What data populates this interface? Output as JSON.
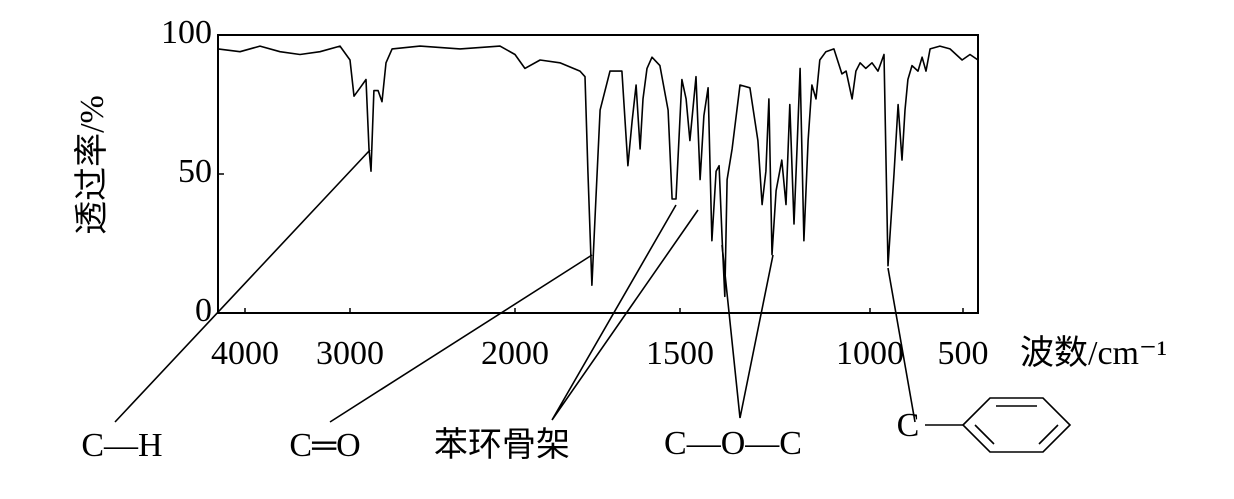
{
  "chart_data": {
    "type": "line",
    "ylabel": "透过率/%",
    "xlabel": "波数/cm⁻¹",
    "xlim": [
      4257,
      419
    ],
    "xticks": [
      4000,
      3000,
      2000,
      1500,
      1000,
      500
    ],
    "ylim": [
      0,
      100
    ],
    "yticks": [
      0,
      50,
      100
    ],
    "color": "#000000",
    "x": [
      4257,
      4048,
      3857,
      3667,
      3476,
      3286,
      3095,
      3000,
      2976,
      2939,
      2903,
      2885,
      2873,
      2855,
      2830,
      2806,
      2782,
      2745,
      2576,
      2333,
      2091,
      2000,
      1970,
      1924,
      1864,
      1803,
      1788,
      1779,
      1767,
      1755,
      1742,
      1712,
      1676,
      1658,
      1645,
      1633,
      1621,
      1612,
      1600,
      1585,
      1561,
      1536,
      1524,
      1512,
      1495,
      1484,
      1474,
      1458,
      1447,
      1437,
      1426,
      1416,
      1405,
      1397,
      1389,
      1382,
      1376,
      1363,
      1342,
      1316,
      1295,
      1284,
      1274,
      1266,
      1258,
      1247,
      1232,
      1221,
      1211,
      1200,
      1192,
      1184,
      1174,
      1163,
      1153,
      1142,
      1132,
      1116,
      1095,
      1074,
      1063,
      1047,
      1037,
      1026,
      1011,
      989,
      957,
      925,
      903,
      871,
      849,
      828,
      812,
      796,
      774,
      742,
      720,
      699,
      677,
      624,
      570,
      505,
      462,
      419
    ],
    "values": [
      95,
      94,
      96,
      94,
      93,
      94,
      96,
      91,
      78,
      81,
      84,
      59,
      51,
      80,
      80,
      76,
      90,
      95,
      96,
      95,
      96,
      93,
      88,
      91,
      90,
      87,
      85,
      51,
      10,
      41,
      73,
      87,
      87,
      53,
      69,
      82,
      59,
      77,
      88,
      92,
      89,
      73,
      41,
      41,
      84,
      77,
      62,
      85,
      48,
      71,
      81,
      26,
      51,
      53,
      26,
      6,
      48,
      59,
      82,
      81,
      62,
      39,
      51,
      77,
      21,
      44,
      55,
      39,
      75,
      32,
      59,
      88,
      26,
      62,
      82,
      77,
      91,
      94,
      95,
      86,
      87,
      77,
      87,
      90,
      88,
      90,
      87,
      93,
      17,
      50,
      75,
      55,
      73,
      84,
      89,
      87,
      92,
      87,
      95,
      96,
      95,
      91,
      93,
      91
    ],
    "annotations": [
      "C—H",
      "C═O",
      "苯环骨架",
      "C—O—C",
      "C"
    ]
  }
}
